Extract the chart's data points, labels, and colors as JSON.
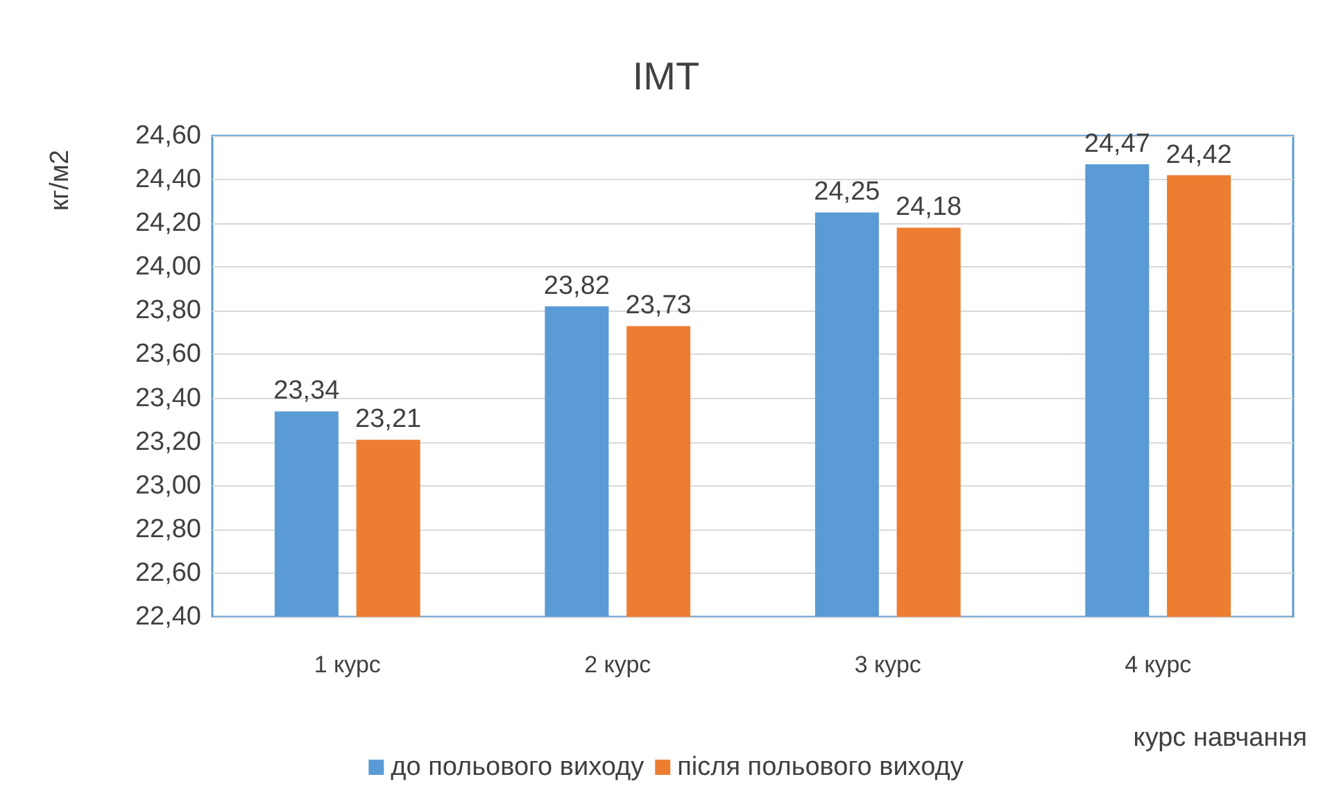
{
  "chart_data": {
    "type": "bar",
    "title": "ІМТ",
    "xlabel": "курс навчання",
    "ylabel": "кг/м2",
    "categories": [
      "1 курс",
      "2 курс",
      "3 курс",
      "4 курс"
    ],
    "series": [
      {
        "name": "до польового виходу",
        "color": "#5b9bd5",
        "values": [
          23.34,
          23.82,
          24.25,
          24.47
        ],
        "value_labels": [
          "23,34",
          "23,82",
          "24,25",
          "24,47"
        ]
      },
      {
        "name": "після польового виходу",
        "color": "#ed7d31",
        "values": [
          23.21,
          23.73,
          24.18,
          24.42
        ],
        "value_labels": [
          "23,21",
          "23,73",
          "24,18",
          "24,42"
        ]
      }
    ],
    "ylim": [
      22.4,
      24.6
    ],
    "yticks": [
      {
        "value": 22.4,
        "label": "22,40"
      },
      {
        "value": 22.6,
        "label": "22,60"
      },
      {
        "value": 22.8,
        "label": "22,80"
      },
      {
        "value": 23.0,
        "label": "23,00"
      },
      {
        "value": 23.2,
        "label": "23,20"
      },
      {
        "value": 23.4,
        "label": "23,40"
      },
      {
        "value": 23.6,
        "label": "23,60"
      },
      {
        "value": 23.8,
        "label": "23,80"
      },
      {
        "value": 24.0,
        "label": "24,00"
      },
      {
        "value": 24.2,
        "label": "24,20"
      },
      {
        "value": 24.4,
        "label": "24,40"
      },
      {
        "value": 24.6,
        "label": "24,60"
      }
    ],
    "grid": "y",
    "legend": "bottom"
  }
}
